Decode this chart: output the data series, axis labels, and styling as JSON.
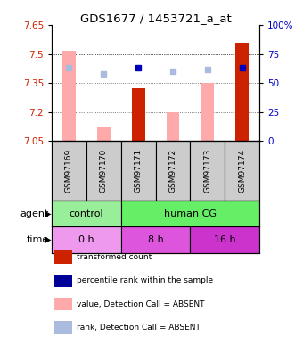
{
  "title": "GDS1677 / 1453721_a_at",
  "samples": [
    "GSM97169",
    "GSM97170",
    "GSM97171",
    "GSM97172",
    "GSM97173",
    "GSM97174"
  ],
  "ylim_left": [
    7.05,
    7.65
  ],
  "ylim_right": [
    0,
    100
  ],
  "yticks_left": [
    7.05,
    7.2,
    7.35,
    7.5,
    7.65
  ],
  "yticks_right": [
    0,
    25,
    50,
    75,
    100
  ],
  "red_bars": [
    null,
    null,
    7.325,
    null,
    null,
    7.56
  ],
  "pink_bars": [
    7.52,
    7.12,
    null,
    7.2,
    7.35,
    null
  ],
  "blue_squares": [
    null,
    null,
    7.43,
    null,
    null,
    7.43
  ],
  "lightblue_squares": [
    7.43,
    7.4,
    null,
    7.41,
    7.42,
    null
  ],
  "agent_groups": [
    {
      "label": "control",
      "cols": [
        0,
        1
      ],
      "color": "#99ee99"
    },
    {
      "label": "human CG",
      "cols": [
        2,
        3,
        4,
        5
      ],
      "color": "#66ee66"
    }
  ],
  "time_colors": [
    "#ee99ee",
    "#dd55dd",
    "#cc33cc"
  ],
  "time_groups": [
    {
      "label": "0 h",
      "cols": [
        0,
        1
      ]
    },
    {
      "label": "8 h",
      "cols": [
        2,
        3
      ]
    },
    {
      "label": "16 h",
      "cols": [
        4,
        5
      ]
    }
  ],
  "legend_items": [
    {
      "color": "#cc2200",
      "label": "transformed count"
    },
    {
      "color": "#000099",
      "label": "percentile rank within the sample"
    },
    {
      "color": "#ffaaaa",
      "label": "value, Detection Call = ABSENT"
    },
    {
      "color": "#aabbdd",
      "label": "rank, Detection Call = ABSENT"
    }
  ],
  "bar_bottom": 7.05,
  "bar_width": 0.38,
  "red_color": "#cc2200",
  "pink_color": "#ffaaaa",
  "blue_color": "#0000bb",
  "lightblue_color": "#aabbdd",
  "grid_color": "#555555",
  "label_color_left": "#cc2200",
  "label_color_right": "#0000cc",
  "sample_bg": "#cccccc"
}
